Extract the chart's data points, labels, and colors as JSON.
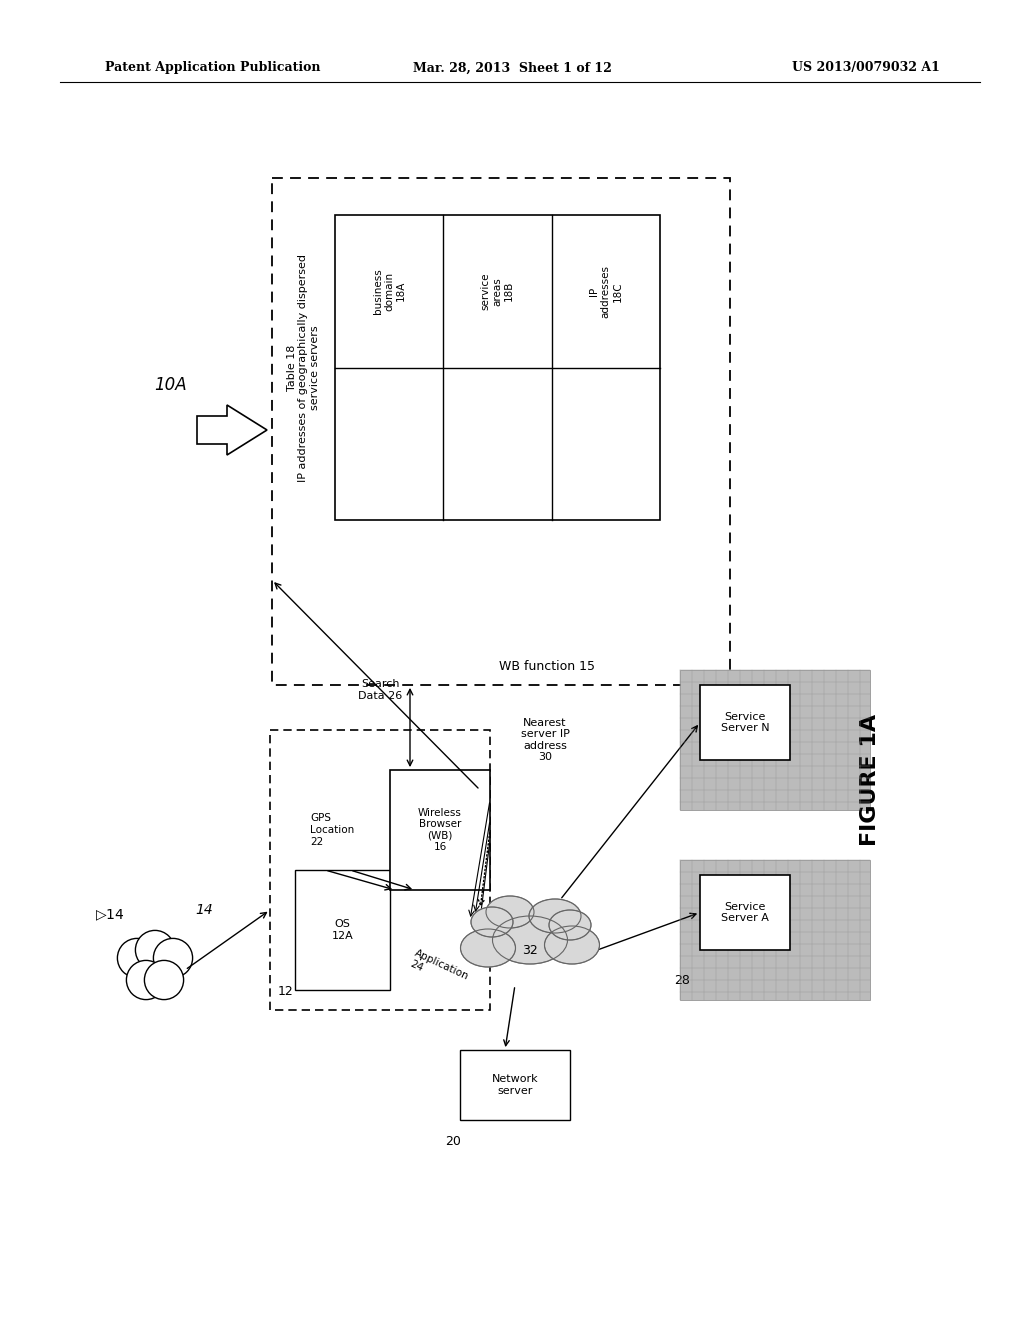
{
  "bg_color": "#ffffff",
  "header_left": "Patent Application Publication",
  "header_center": "Mar. 28, 2013  Sheet 1 of 12",
  "header_right": "US 2013/0079032 A1",
  "figure_label": "FIGURE 1A",
  "label_10A": "10A",
  "label_14": "14",
  "table_title_line1": "Table 18",
  "table_title_line2": "IP addresses of geographically dispersed",
  "table_title_line3": "service servers",
  "wb_function_label": "WB function 15",
  "search_data_label": "Search\nData 26",
  "nearest_server_label": "Nearest\nserver IP\naddress\n30",
  "wireless_browser_label": "Wireless\nBrowser\n(WB)\n16",
  "gps_label": "GPS\nLocation\n22",
  "os_label": "OS\n12A",
  "application_label": "Application\n24",
  "device_box_label": "12",
  "network_server_label": "Network\nserver",
  "network_server_num": "20",
  "cloud_label": "32",
  "service_a_label": "Service\nServer A",
  "service_n_label": "Service\nServer N",
  "server_num": "28",
  "col_labels": [
    "business\ndomain\n18A",
    "service\nareas\n18B",
    "IP\naddresses\n18C"
  ]
}
